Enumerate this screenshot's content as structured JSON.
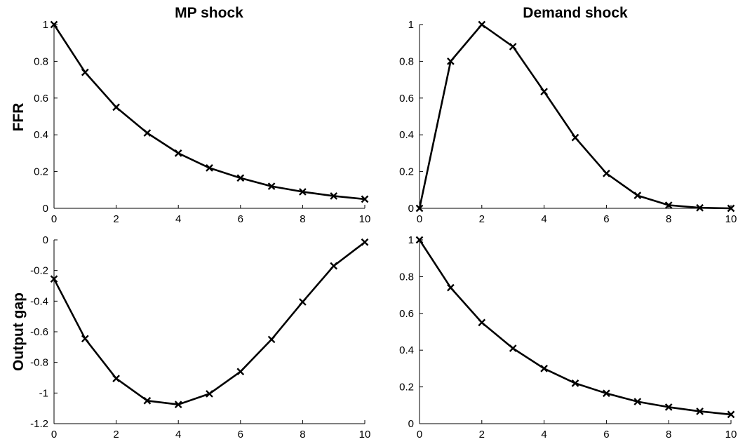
{
  "figure": {
    "columns": [
      "MP shock",
      "Demand shock"
    ],
    "rows": [
      "FFR",
      "Output gap"
    ],
    "colors": {
      "line": "#000000",
      "marker": "#000000",
      "axis": "#000000",
      "background": "#ffffff"
    }
  },
  "chart_data": [
    {
      "type": "line",
      "panel": "top-left",
      "title": "MP shock",
      "ylabel": "FFR",
      "xlabel": "",
      "xlim": [
        0,
        10
      ],
      "ylim": [
        0,
        1
      ],
      "xticks": [
        0,
        2,
        4,
        6,
        8,
        10
      ],
      "yticks": [
        0,
        0.2,
        0.4,
        0.6,
        0.8,
        1
      ],
      "ytick_labels": [
        "0",
        "0.2",
        "0.4",
        "0.6",
        "0.8",
        "1"
      ],
      "marker": "x",
      "grid": false,
      "x": [
        0,
        1,
        2,
        3,
        4,
        5,
        6,
        7,
        8,
        9,
        10
      ],
      "values": [
        1.0,
        0.74,
        0.55,
        0.41,
        0.3,
        0.22,
        0.165,
        0.12,
        0.09,
        0.067,
        0.05
      ]
    },
    {
      "type": "line",
      "panel": "top-right",
      "title": "Demand shock",
      "ylabel": "",
      "xlabel": "",
      "xlim": [
        0,
        10
      ],
      "ylim": [
        0,
        1
      ],
      "xticks": [
        0,
        2,
        4,
        6,
        8,
        10
      ],
      "yticks": [
        0,
        0.2,
        0.4,
        0.6,
        0.8,
        1
      ],
      "ytick_labels": [
        "0",
        "0.2",
        "0.4",
        "0.6",
        "0.8",
        "1"
      ],
      "marker": "x",
      "grid": false,
      "x": [
        0,
        1,
        2,
        3,
        4,
        5,
        6,
        7,
        8,
        9,
        10
      ],
      "values": [
        0.0,
        0.8,
        1.0,
        0.88,
        0.635,
        0.385,
        0.19,
        0.07,
        0.017,
        0.003,
        0.0
      ]
    },
    {
      "type": "line",
      "panel": "bottom-left",
      "title": "",
      "ylabel": "Output gap",
      "xlabel": "",
      "xlim": [
        0,
        10
      ],
      "ylim": [
        -1.2,
        0
      ],
      "xticks": [
        0,
        2,
        4,
        6,
        8,
        10
      ],
      "yticks": [
        -1.2,
        -1,
        -0.8,
        -0.6,
        -0.4,
        -0.2,
        0
      ],
      "ytick_labels": [
        "-1.2",
        "-1",
        "-0.8",
        "-0.6",
        "-0.4",
        "-0.2",
        "0"
      ],
      "marker": "x",
      "grid": false,
      "x": [
        0,
        1,
        2,
        3,
        4,
        5,
        6,
        7,
        8,
        9,
        10
      ],
      "values": [
        -0.255,
        -0.645,
        -0.905,
        -1.05,
        -1.075,
        -1.005,
        -0.86,
        -0.65,
        -0.405,
        -0.17,
        -0.015
      ]
    },
    {
      "type": "line",
      "panel": "bottom-right",
      "title": "",
      "ylabel": "",
      "xlabel": "",
      "xlim": [
        0,
        10
      ],
      "ylim": [
        0,
        1
      ],
      "xticks": [
        0,
        2,
        4,
        6,
        8,
        10
      ],
      "yticks": [
        0,
        0.2,
        0.4,
        0.6,
        0.8,
        1
      ],
      "ytick_labels": [
        "0",
        "0.2",
        "0.4",
        "0.6",
        "0.8",
        "1"
      ],
      "marker": "x",
      "grid": false,
      "x": [
        0,
        1,
        2,
        3,
        4,
        5,
        6,
        7,
        8,
        9,
        10
      ],
      "values": [
        1.0,
        0.74,
        0.55,
        0.41,
        0.3,
        0.22,
        0.165,
        0.12,
        0.09,
        0.067,
        0.05
      ]
    }
  ]
}
